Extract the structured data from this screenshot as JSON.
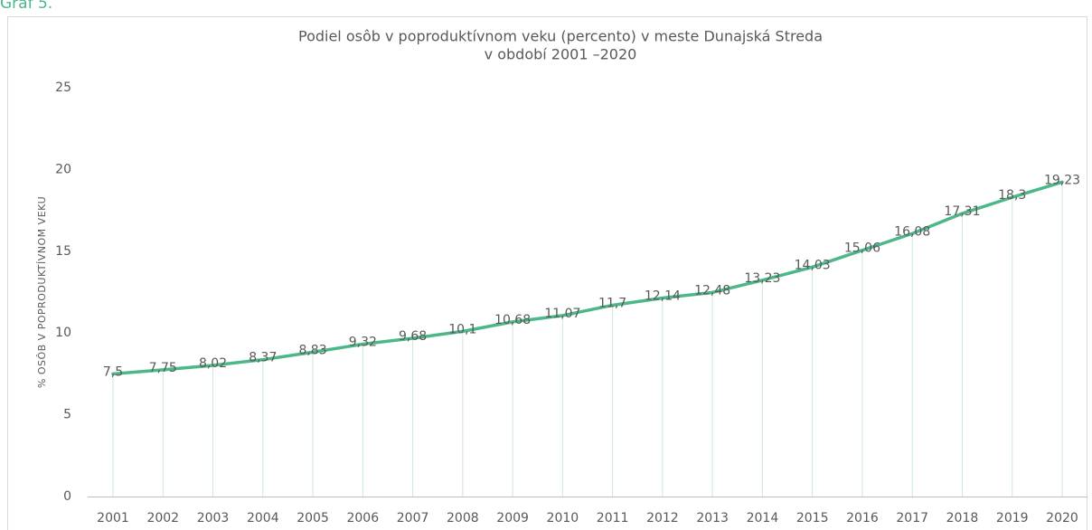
{
  "caption": "Graf 5.",
  "chart_data": {
    "type": "line",
    "title": [
      "Podiel osôb v poproduktívnom veku (percento) v meste Dunajská Streda",
      "v období 2001 –2020"
    ],
    "y_label": "% OSÔB V POPRODUKTÍVNOM VEKU",
    "categories": [
      "2001",
      "2002",
      "2003",
      "2004",
      "2005",
      "2006",
      "2007",
      "2008",
      "2009",
      "2010",
      "2011",
      "2012",
      "2013",
      "2014",
      "2015",
      "2016",
      "2017",
      "2018",
      "2019",
      "2020"
    ],
    "values": [
      7.5,
      7.75,
      8.02,
      8.37,
      8.83,
      9.32,
      9.68,
      10.1,
      10.68,
      11.07,
      11.7,
      12.14,
      12.48,
      13.23,
      14.03,
      15.06,
      16.08,
      17.31,
      18.3,
      19.23
    ],
    "value_labels": [
      "7,5",
      "7,75",
      "8,02",
      "8,37",
      "8,83",
      "9,32",
      "9,68",
      "10,1",
      "10,68",
      "11,07",
      "11,7",
      "12,14",
      "12,48",
      "13,23",
      "14,03",
      "15,06",
      "16,08",
      "17,31",
      "18,3",
      "19,23"
    ],
    "color": "#4cb88a",
    "drop_line_color": "#cfe6df",
    "ylim": [
      0,
      25
    ],
    "yticks": [
      0,
      5,
      10,
      15,
      20,
      25
    ],
    "grid": false
  }
}
